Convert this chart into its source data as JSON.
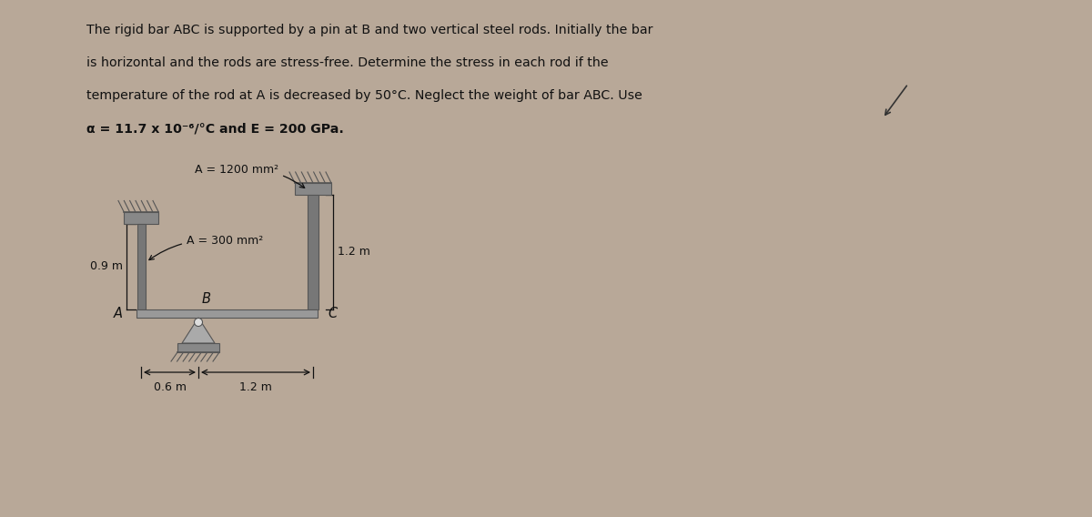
{
  "bg_color": "#b8a898",
  "panel_color": "#c8b8a0",
  "title_lines": [
    "The rigid bar ABC is supported by a pin at B and two vertical steel rods. Initially the bar",
    "is horizontal and the rods are stress-free. Determine the stress in each rod if the",
    "temperature of the rod at A is decreased by 50°C. Neglect the weight of bar ABC. Use",
    "α = 11.7 x 10⁻⁶/°C and E = 200 GPa."
  ],
  "rod_A_area": "A = 300 mm²",
  "rod_C_area": "A = 1200 mm²",
  "rod_A_length": "0.9 m",
  "rod_C_length": "1.2 m",
  "dim_BC": "1.2 m",
  "dim_AB": "0.6 m",
  "label_A": "A",
  "label_B": "B",
  "label_C": "C",
  "text_color": "#111111",
  "dark_gray": "#555555",
  "med_gray": "#888888",
  "light_gray": "#aaaaaa",
  "bar_face": "#999999",
  "rod_face": "#777777",
  "plate_face": "#888888",
  "pin_face": "#cccccc"
}
